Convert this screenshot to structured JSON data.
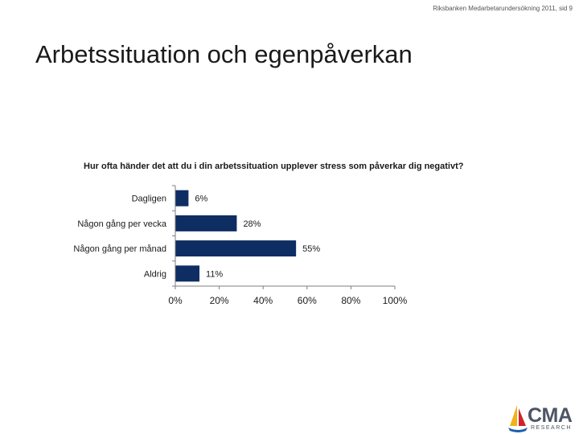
{
  "header": {
    "note": "Riksbanken Medarbetarundersökning 2011,  sid 9"
  },
  "slide": {
    "title": "Arbetssituation och egenpåverkan"
  },
  "logo": {
    "main": "CMA",
    "sub": "RESEARCH"
  },
  "colors": {
    "bar": "#0e2d63",
    "axis": "#7f7f7f",
    "logo_text": "#4c5563",
    "logo_blue": "#1f5fa8",
    "logo_yellow": "#f2b11b",
    "logo_red": "#d2232a"
  },
  "chart_data": {
    "type": "bar",
    "orientation": "horizontal",
    "title": "Hur ofta händer det att du i din arbetssituation upplever stress som påverkar dig negativt?",
    "categories": [
      "Dagligen",
      "Någon gång per vecka",
      "Någon gång per månad",
      "Aldrig"
    ],
    "values": [
      6,
      28,
      55,
      11
    ],
    "value_labels": [
      "6%",
      "28%",
      "55%",
      "11%"
    ],
    "xlim": [
      0,
      100
    ],
    "x_ticks": [
      0,
      20,
      40,
      60,
      80,
      100
    ],
    "x_tick_labels": [
      "0%",
      "20%",
      "40%",
      "60%",
      "80%",
      "100%"
    ],
    "grid": false,
    "legend": "none"
  }
}
